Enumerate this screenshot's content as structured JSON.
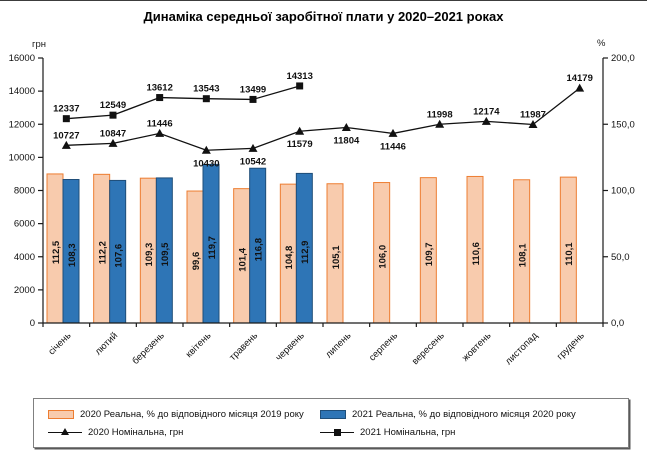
{
  "title": "Динаміка середньої заробітної плати у 2020–2021 роках",
  "axes": {
    "left_unit": "грн",
    "right_unit": "%"
  },
  "chart_data": {
    "type": "combo-bar-line",
    "categories": [
      "січень",
      "лютий",
      "березень",
      "квітень",
      "травень",
      "червень",
      "липень",
      "серпень",
      "вересень",
      "жовтень",
      "листопад",
      "грудень"
    ],
    "series": [
      {
        "name": "2020 Реальна, % до відповідного місяця 2019 року",
        "chart": "bar",
        "axis": "right",
        "fill": "#F8CBAD",
        "stroke": "#ED7D31",
        "values": [
          112.5,
          112.2,
          109.3,
          99.6,
          101.4,
          104.8,
          105.1,
          106.0,
          109.7,
          110.6,
          108.1,
          110.1
        ],
        "labels": [
          "112,5",
          "112,2",
          "109,3",
          "99,6",
          "101,4",
          "104,8",
          "105,1",
          "106,0",
          "109,7",
          "110,6",
          "108,1",
          "110,1"
        ]
      },
      {
        "name": "2021 Реальна, % до відповідного місяця 2020 року",
        "chart": "bar",
        "axis": "right",
        "fill": "#2E75B6",
        "stroke": "#1F4E79",
        "values": [
          108.3,
          107.6,
          109.5,
          119.7,
          116.8,
          112.9
        ],
        "labels": [
          "108,3",
          "107,6",
          "109,5",
          "119,7",
          "116,8",
          "112,9"
        ]
      },
      {
        "name": "2020 Номінальна, грн",
        "chart": "line",
        "axis": "left",
        "marker": "triangle",
        "color": "#111111",
        "values": [
          10727,
          10847,
          11446,
          10430,
          10542,
          11579,
          11804,
          11446,
          11998,
          12174,
          11987,
          14179
        ],
        "label_below": [
          false,
          false,
          false,
          true,
          true,
          true,
          true,
          true,
          false,
          false,
          false,
          false
        ]
      },
      {
        "name": "2021 Номінальна, грн",
        "chart": "line",
        "axis": "left",
        "marker": "square",
        "color": "#111111",
        "values": [
          12337,
          12549,
          13612,
          13543,
          13499,
          14313
        ],
        "label_below": [
          false,
          false,
          false,
          false,
          false,
          false
        ]
      }
    ],
    "left_axis": {
      "min": 0,
      "max": 16000,
      "step": 2000,
      "tick_labels": [
        "0",
        "2000",
        "4000",
        "6000",
        "8000",
        "10000",
        "12000",
        "14000",
        "16000"
      ],
      "unit": "грн"
    },
    "right_axis": {
      "min": 0,
      "max": 200,
      "step": 50,
      "tick_labels": [
        "0,0",
        "50,0",
        "100,0",
        "150,0",
        "200,0"
      ],
      "unit": "%"
    },
    "grid": false,
    "legend_position": "bottom"
  }
}
